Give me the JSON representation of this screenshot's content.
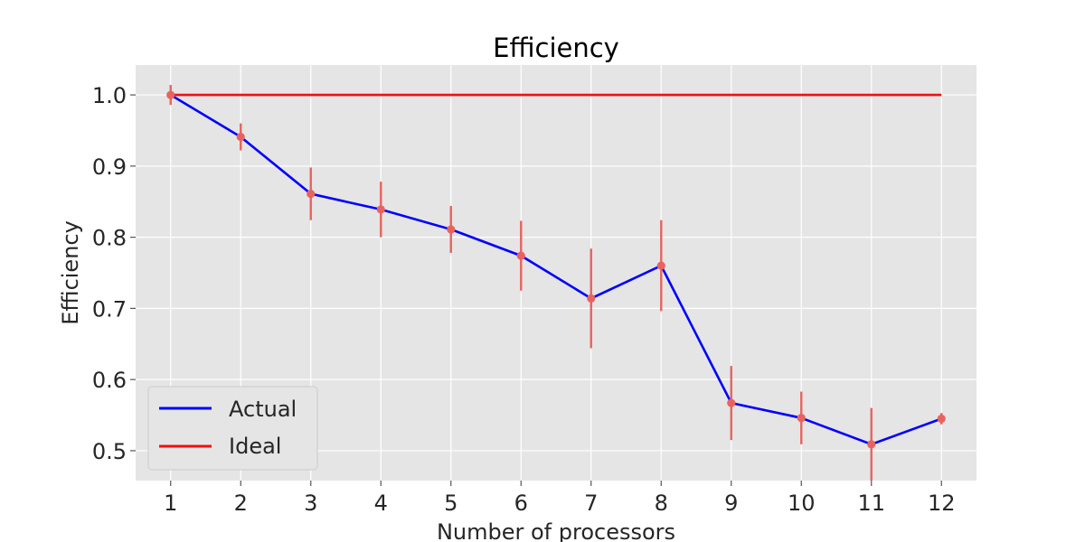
{
  "chart_data": {
    "type": "line",
    "title": "Efficiency",
    "xlabel": "Number of processors",
    "ylabel": "Efficiency",
    "x": [
      1,
      2,
      3,
      4,
      5,
      6,
      7,
      8,
      9,
      10,
      11,
      12
    ],
    "xlim": [
      0.5,
      12.5
    ],
    "ylim": [
      0.458,
      1.042
    ],
    "yticks": [
      "0.5",
      "0.6",
      "0.7",
      "0.8",
      "0.9",
      "1.0"
    ],
    "ytick_values": [
      0.5,
      0.6,
      0.7,
      0.8,
      0.9,
      1.0
    ],
    "xticks": [
      "1",
      "2",
      "3",
      "4",
      "5",
      "6",
      "7",
      "8",
      "9",
      "10",
      "11",
      "12"
    ],
    "grid": true,
    "legend_position": "bottom-left",
    "series": [
      {
        "name": "Actual",
        "color": "#0000ff",
        "values": [
          1.0,
          0.941,
          0.861,
          0.839,
          0.811,
          0.774,
          0.714,
          0.76,
          0.567,
          0.546,
          0.509,
          0.545
        ],
        "errors": [
          0.014,
          0.019,
          0.037,
          0.039,
          0.033,
          0.049,
          0.07,
          0.064,
          0.052,
          0.037,
          0.051,
          0.008
        ],
        "marker_color": "#e8635f"
      },
      {
        "name": "Ideal",
        "color": "#ee1111",
        "values": [
          1.0,
          1.0,
          1.0,
          1.0,
          1.0,
          1.0,
          1.0,
          1.0,
          1.0,
          1.0,
          1.0,
          1.0
        ]
      }
    ]
  }
}
